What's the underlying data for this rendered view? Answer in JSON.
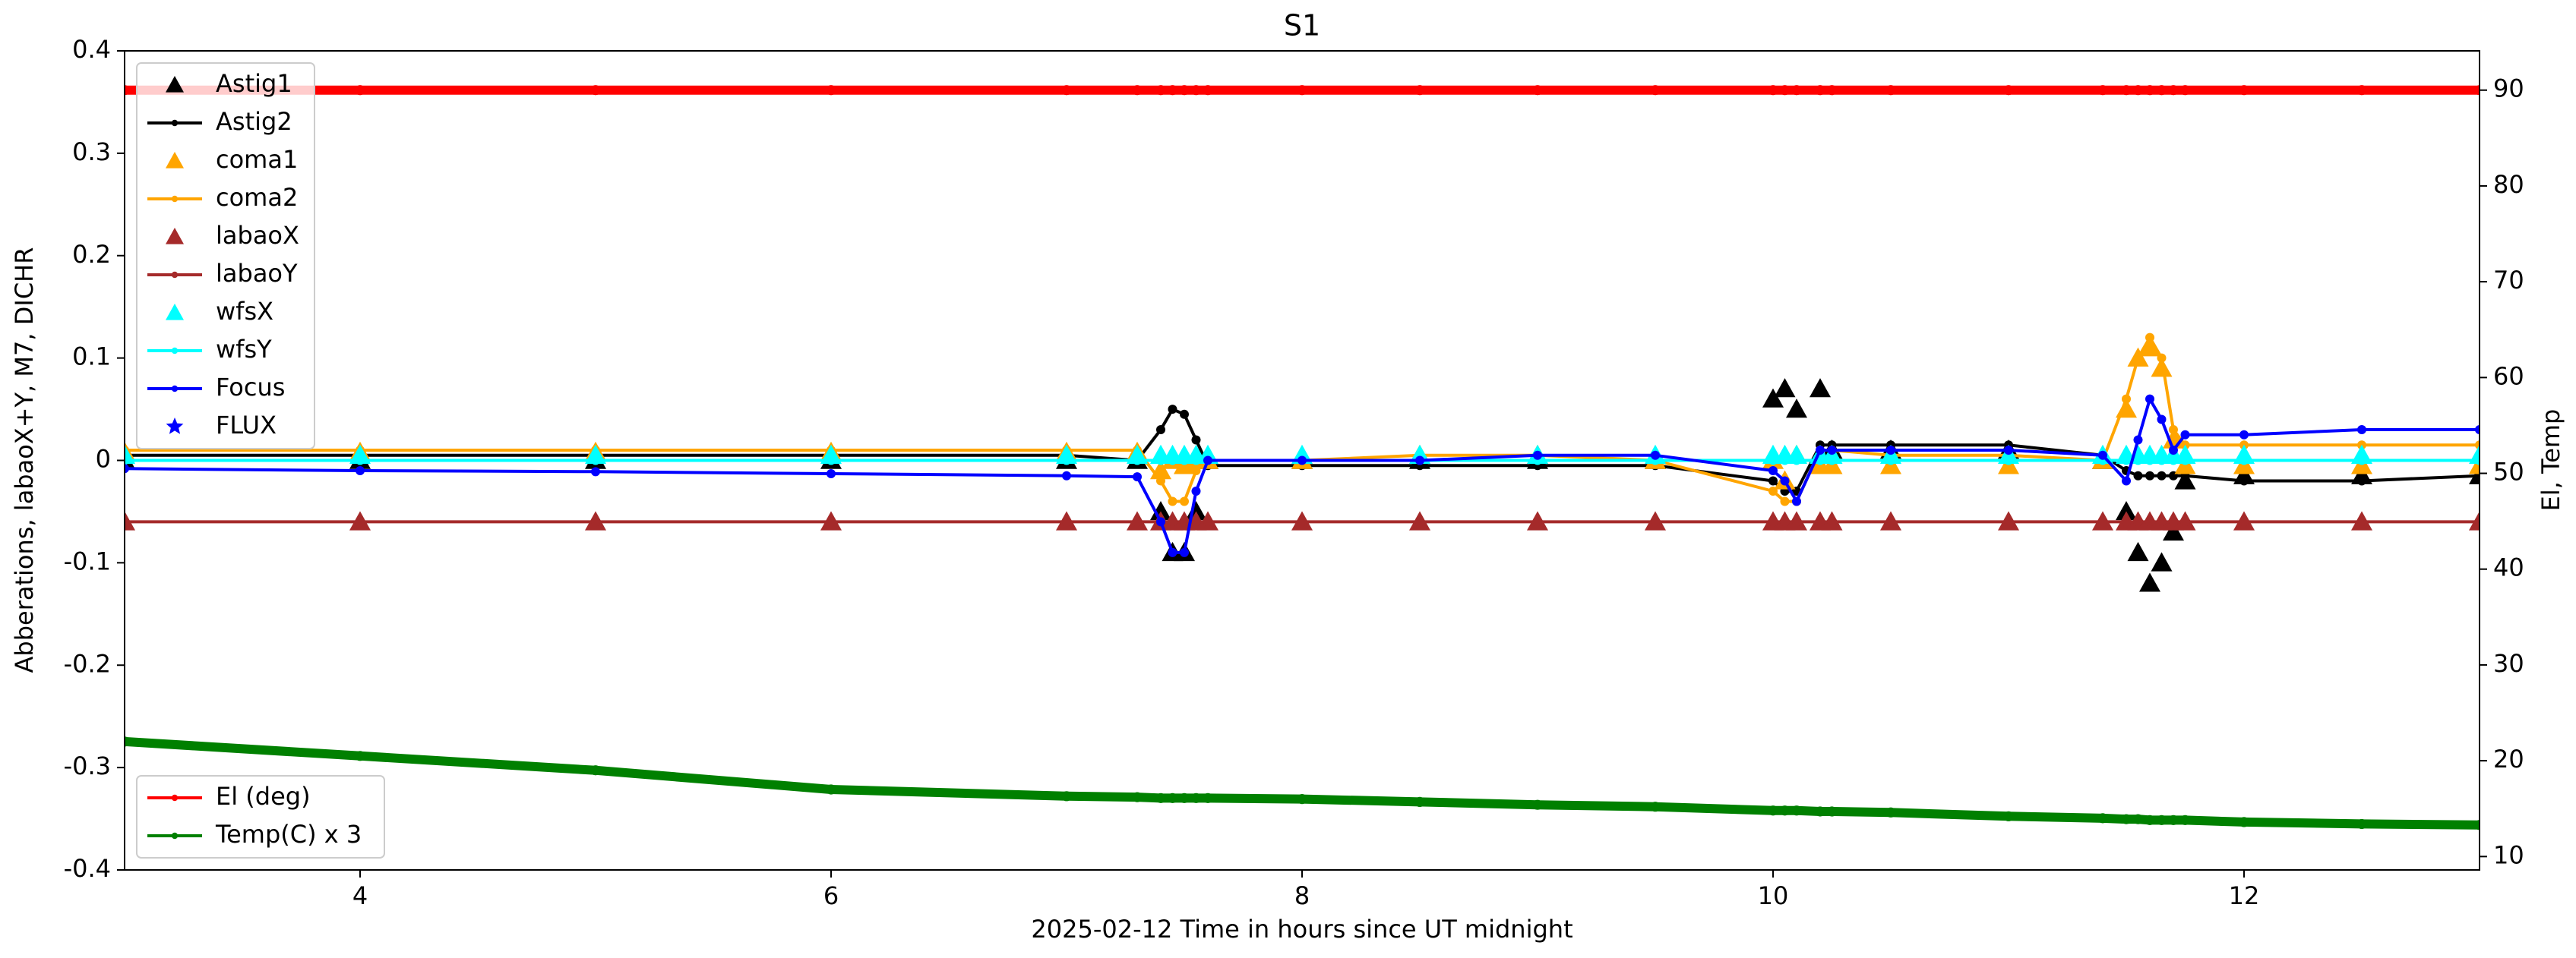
{
  "chart_data": {
    "type": "line",
    "title": "S1",
    "x_label": "2025-02-12  Time in hours since UT midnight",
    "y_label": "Abberations, labaoX+Y, M7, DICHR",
    "y2_label": "El, Temp",
    "x": [
      3,
      4,
      5,
      6,
      7,
      7.3,
      7.4,
      7.45,
      7.5,
      7.55,
      7.6,
      8,
      8.5,
      9,
      9.5,
      10,
      10.05,
      10.1,
      10.2,
      10.25,
      10.5,
      11,
      11.4,
      11.5,
      11.55,
      11.6,
      11.65,
      11.7,
      11.75,
      12,
      12.5,
      13
    ],
    "xlim": [
      3,
      13
    ],
    "xticks": [
      4,
      6,
      8,
      10,
      12
    ],
    "ylim": [
      -0.4,
      0.4
    ],
    "yticks": [
      -0.4,
      -0.3,
      -0.2,
      -0.1,
      0.0,
      0.1,
      0.2,
      0.3,
      0.4
    ],
    "y2lim": [
      8.6,
      94.1
    ],
    "y2ticks": [
      10,
      20,
      30,
      40,
      50,
      60,
      70,
      80,
      90
    ],
    "legend_loc": "upper left",
    "legend2_loc": "lower left",
    "series": [
      {
        "name": "Astig1",
        "color": "#000000",
        "marker": "triangle",
        "line": false,
        "values": [
          0,
          0,
          0,
          0,
          0,
          0,
          -0.05,
          -0.09,
          -0.09,
          -0.05,
          0,
          0,
          0,
          0,
          0,
          0.06,
          0.07,
          0.05,
          0.07,
          0.01,
          0.01,
          0.01,
          0,
          -0.05,
          -0.09,
          -0.12,
          -0.1,
          -0.07,
          -0.02,
          -0.015,
          -0.015,
          -0.015
        ]
      },
      {
        "name": "Astig2",
        "color": "#000000",
        "marker": "circle",
        "line": true,
        "values": [
          0.005,
          0.005,
          0.005,
          0.005,
          0.005,
          0,
          0.03,
          0.05,
          0.045,
          0.02,
          -0.005,
          -0.005,
          -0.005,
          -0.005,
          -0.005,
          -0.02,
          -0.03,
          -0.03,
          0.015,
          0.015,
          0.015,
          0.015,
          0.005,
          -0.01,
          -0.015,
          -0.015,
          -0.015,
          -0.015,
          -0.015,
          -0.02,
          -0.02,
          -0.015
        ]
      },
      {
        "name": "coma1",
        "color": "#ffa500",
        "marker": "triangle",
        "line": false,
        "values": [
          0.008,
          0.008,
          0.008,
          0.008,
          0.008,
          0.008,
          -0.01,
          0,
          -0.005,
          0,
          0,
          0,
          0.005,
          0.005,
          0,
          0,
          -0.02,
          0.005,
          -0.005,
          -0.005,
          -0.005,
          -0.005,
          0,
          0.05,
          0.1,
          0.11,
          0.09,
          0.02,
          -0.005,
          -0.005,
          -0.005,
          -0.005
        ]
      },
      {
        "name": "coma2",
        "color": "#ffa500",
        "marker": "circle",
        "line": true,
        "values": [
          0.01,
          0.01,
          0.01,
          0.01,
          0.01,
          0.01,
          -0.02,
          -0.04,
          -0.04,
          -0.01,
          0,
          0,
          0.005,
          0.005,
          0,
          -0.03,
          -0.04,
          -0.04,
          0.01,
          0.01,
          0.005,
          0.005,
          0,
          0.06,
          0.1,
          0.12,
          0.1,
          0.03,
          0.015,
          0.015,
          0.015,
          0.015
        ]
      },
      {
        "name": "labaoX",
        "color": "#a52a2a",
        "marker": "triangle",
        "line": false,
        "values": [
          -0.06,
          -0.06,
          -0.06,
          -0.06,
          -0.06,
          -0.06,
          -0.06,
          -0.06,
          -0.06,
          -0.06,
          -0.06,
          -0.06,
          -0.06,
          -0.06,
          -0.06,
          -0.06,
          -0.06,
          -0.06,
          -0.06,
          -0.06,
          -0.06,
          -0.06,
          -0.06,
          -0.06,
          -0.06,
          -0.06,
          -0.06,
          -0.06,
          -0.06,
          -0.06,
          -0.06,
          -0.06
        ]
      },
      {
        "name": "labaoY",
        "color": "#a52a2a",
        "marker": "circle",
        "line": true,
        "values": [
          -0.06,
          -0.06,
          -0.06,
          -0.06,
          -0.06,
          -0.06,
          -0.06,
          -0.06,
          -0.06,
          -0.06,
          -0.06,
          -0.06,
          -0.06,
          -0.06,
          -0.06,
          -0.06,
          -0.06,
          -0.06,
          -0.06,
          -0.06,
          -0.06,
          -0.06,
          -0.06,
          -0.06,
          -0.06,
          -0.06,
          -0.06,
          -0.06,
          -0.06,
          -0.06,
          -0.06,
          -0.06
        ]
      },
      {
        "name": "wfsX",
        "color": "#00ffff",
        "marker": "triangle",
        "line": false,
        "values": [
          0.005,
          0.005,
          0.005,
          0.005,
          0.005,
          0.005,
          0.005,
          0.005,
          0.005,
          0.005,
          0.005,
          0.005,
          0.005,
          0.005,
          0.005,
          0.005,
          0.005,
          0.005,
          0.005,
          0.005,
          0.005,
          0.005,
          0.005,
          0.005,
          0.005,
          0.005,
          0.005,
          0.005,
          0.005,
          0.005,
          0.005,
          0.005
        ]
      },
      {
        "name": "wfsY",
        "color": "#00ffff",
        "marker": "circle",
        "line": true,
        "values": [
          0,
          0,
          0,
          0,
          0,
          0,
          0,
          0,
          0,
          0,
          0,
          0,
          0,
          0,
          0,
          0,
          0,
          0,
          0,
          0,
          0,
          0,
          0,
          0,
          0,
          0,
          0,
          0,
          0,
          0,
          0,
          0
        ]
      },
      {
        "name": "Focus",
        "color": "#0000ff",
        "marker": "circle",
        "line": true,
        "values": [
          -0.008,
          -0.01,
          -0.011,
          -0.013,
          -0.015,
          -0.016,
          -0.06,
          -0.09,
          -0.09,
          -0.03,
          0,
          0,
          0,
          0.005,
          0.005,
          -0.01,
          -0.02,
          -0.04,
          0.01,
          0.01,
          0.01,
          0.01,
          0.005,
          -0.02,
          0.02,
          0.06,
          0.04,
          0.01,
          0.025,
          0.025,
          0.03,
          0.03
        ]
      },
      {
        "name": "FLUX",
        "color": "#0000ff",
        "marker": "star",
        "line": false,
        "values": [
          null,
          null,
          null,
          null,
          null,
          null,
          null,
          null,
          null,
          null,
          null,
          null,
          null,
          null,
          null,
          null,
          null,
          null,
          null,
          null,
          null,
          null,
          null,
          null,
          null,
          null,
          null,
          null,
          null,
          null,
          null,
          null
        ]
      },
      {
        "name": "El (deg)",
        "color": "#ff0000",
        "marker": "circle",
        "line": true,
        "axis": "y2",
        "values": [
          90,
          90,
          90,
          90,
          90,
          90,
          90,
          90,
          90,
          90,
          90,
          90,
          90,
          90,
          90,
          90,
          90,
          90,
          90,
          90,
          90,
          90,
          90,
          90,
          90,
          90,
          90,
          90,
          90,
          90,
          90,
          90
        ]
      },
      {
        "name": "Temp(C) x 3",
        "color": "#008000",
        "marker": "circle",
        "line": true,
        "axis": "y2",
        "values": [
          22,
          20.5,
          19,
          17,
          16.3,
          16.2,
          16.1,
          16.1,
          16.1,
          16.1,
          16.1,
          16,
          15.7,
          15.4,
          15.2,
          14.8,
          14.8,
          14.8,
          14.7,
          14.7,
          14.6,
          14.2,
          14,
          13.9,
          13.9,
          13.8,
          13.8,
          13.8,
          13.8,
          13.6,
          13.4,
          13.3
        ]
      }
    ]
  }
}
